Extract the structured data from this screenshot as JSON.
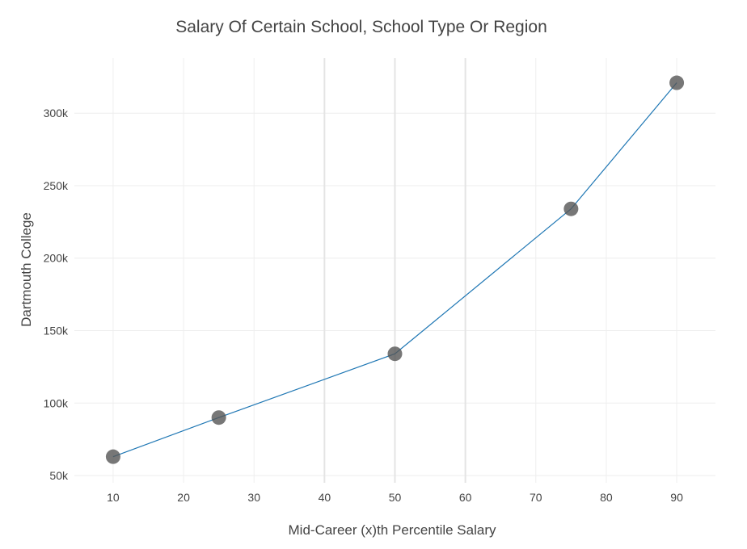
{
  "chart_data": {
    "type": "line",
    "title": "Salary Of Certain School, School Type Or Region",
    "xlabel": "Mid-Career (x)th Percentile Salary",
    "ylabel": "Dartmouth College",
    "xlim": [
      4.5,
      95.5
    ],
    "ylim": [
      45000,
      338000
    ],
    "xticks": [
      10,
      20,
      30,
      40,
      50,
      60,
      70,
      80,
      90
    ],
    "xtick_labels": [
      "10",
      "20",
      "30",
      "40",
      "50",
      "60",
      "70",
      "80",
      "90"
    ],
    "yticks": [
      50000,
      100000,
      150000,
      200000,
      250000,
      300000
    ],
    "ytick_labels": [
      "50k",
      "100k",
      "150k",
      "200k",
      "250k",
      "300k"
    ],
    "major_x_gridlines": [
      40,
      50,
      60
    ],
    "grid": true,
    "legend": false,
    "series": [
      {
        "x": [
          10,
          25,
          50,
          75,
          90
        ],
        "y": [
          63000,
          90000,
          134000,
          234000,
          321000
        ],
        "line_color": "#1f77b4",
        "marker_color": "#555555",
        "marker_opacity": 0.8
      }
    ]
  }
}
